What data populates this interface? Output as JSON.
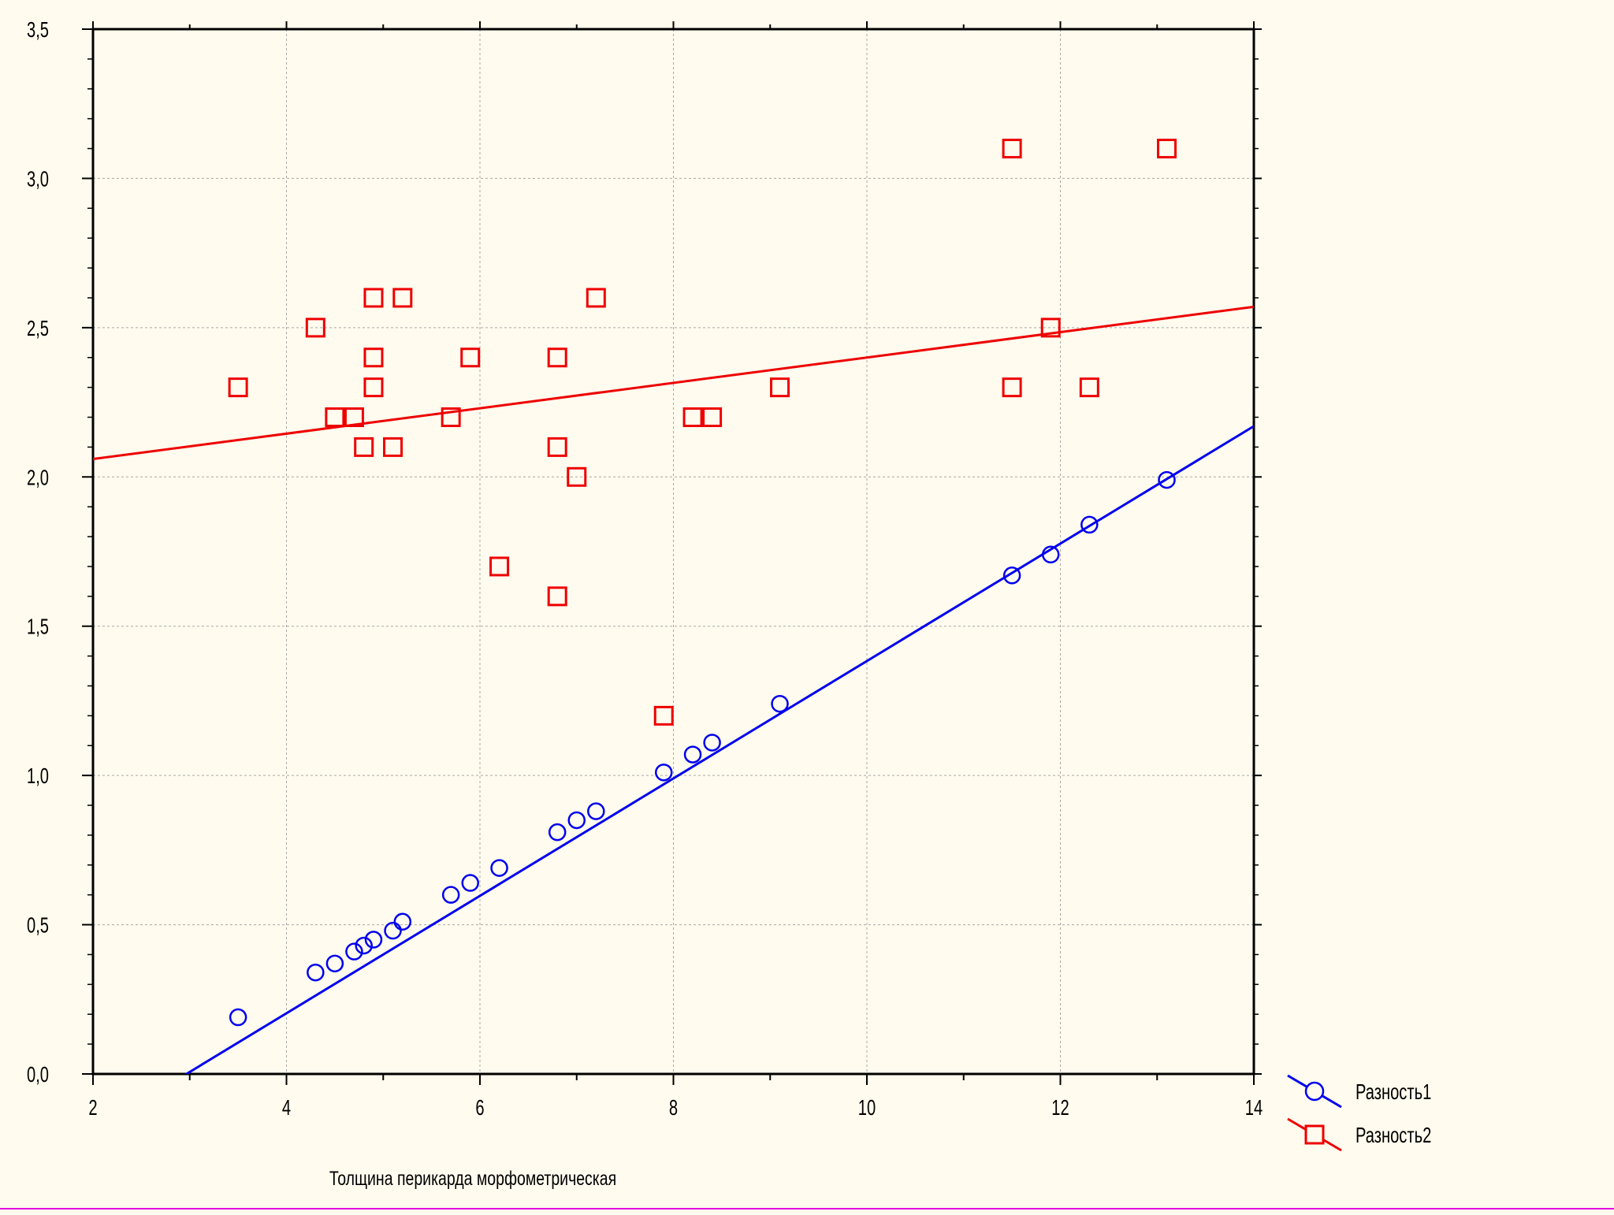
{
  "chart_data": {
    "type": "scatter",
    "xlabel": "Толщина перикарда морфометрическая",
    "ylabel": "",
    "xlim": [
      2,
      14
    ],
    "ylim": [
      0,
      3.5
    ],
    "x_ticks": [
      2,
      4,
      6,
      8,
      10,
      12,
      14
    ],
    "y_ticks": [
      0,
      0.5,
      1,
      1.5,
      2,
      2.5,
      3,
      3.5
    ],
    "x_tick_labels": [
      "2",
      "4",
      "6",
      "8",
      "10",
      "12",
      "14"
    ],
    "y_tick_labels": [
      "0,0",
      "0,5",
      "1,0",
      "1,5",
      "2,0",
      "2,5",
      "3,0",
      "3,5"
    ],
    "grid": true,
    "legend_position": "bottom-right outside",
    "series": [
      {
        "name": "Разность1",
        "color": "#0000ee",
        "marker": "circle",
        "x": [
          3.5,
          4.3,
          4.5,
          4.7,
          4.8,
          4.9,
          5.1,
          5.2,
          5.7,
          5.9,
          6.2,
          6.8,
          7.0,
          7.2,
          7.9,
          8.2,
          8.4,
          9.1,
          11.5,
          11.9,
          12.3,
          13.1
        ],
        "y": [
          0.19,
          0.34,
          0.37,
          0.41,
          0.43,
          0.45,
          0.48,
          0.51,
          0.6,
          0.64,
          0.69,
          0.81,
          0.85,
          0.88,
          1.01,
          1.07,
          1.11,
          1.24,
          1.67,
          1.74,
          1.84,
          1.99
        ],
        "fit": {
          "x": [
            2,
            14
          ],
          "y": [
            -0.19,
            2.17
          ]
        }
      },
      {
        "name": "Разность2",
        "color": "#ee0000",
        "marker": "square",
        "x": [
          3.5,
          4.3,
          4.5,
          4.7,
          4.8,
          4.9,
          4.9,
          4.9,
          5.1,
          5.2,
          5.7,
          5.9,
          6.2,
          6.8,
          6.8,
          6.8,
          7.0,
          7.2,
          7.9,
          8.2,
          8.4,
          9.1,
          11.5,
          11.5,
          11.9,
          12.3,
          13.1
        ],
        "y": [
          2.3,
          2.5,
          2.2,
          2.2,
          2.1,
          2.6,
          2.4,
          2.3,
          2.1,
          2.6,
          2.2,
          2.4,
          1.7,
          2.4,
          2.1,
          1.6,
          2.0,
          2.6,
          1.2,
          2.2,
          2.2,
          2.3,
          3.1,
          2.3,
          2.5,
          2.3,
          3.1
        ],
        "fit": {
          "x": [
            2,
            14
          ],
          "y": [
            2.06,
            2.57
          ]
        }
      }
    ]
  }
}
